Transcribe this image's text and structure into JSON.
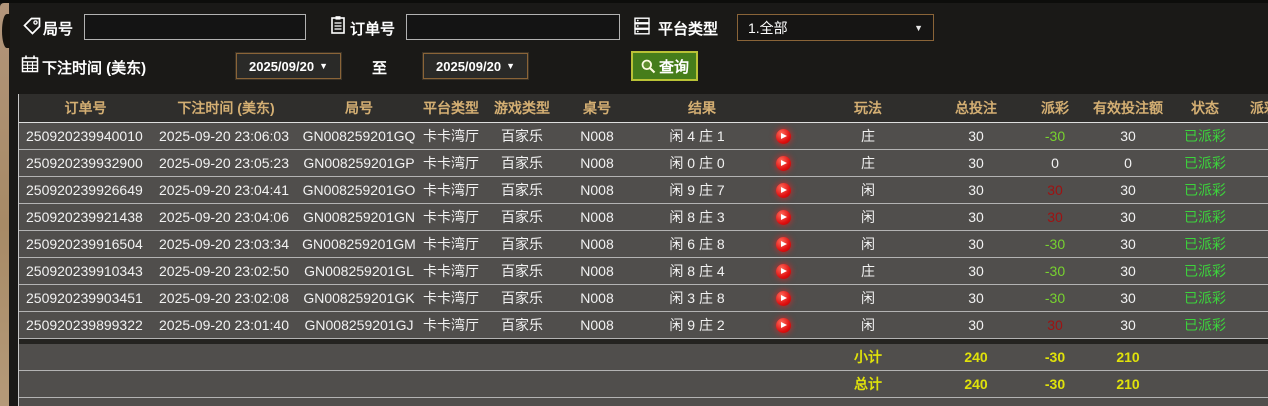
{
  "filters": {
    "round_label": "局号",
    "round_value": "",
    "order_label": "订单号",
    "order_value": "",
    "platform_label": "平台类型",
    "platform_selected": "1.全部",
    "bet_time_label": "下注时间 (美东)",
    "date_from": "2025/09/20",
    "date_to": "2025/09/20",
    "to_label": "至",
    "query_label": "查询",
    "dropdown_arrow": "▼"
  },
  "colors": {
    "header_text": "#d4af73",
    "summary_yellow": "#e0e20a",
    "status_green": "#3cd43c",
    "payout_loss_green": "#77d22f",
    "payout_win_red": "#9e1212",
    "accent_border_brown": "#8a6438",
    "query_button_green": "#467d1b",
    "row_bg": "#504e4c"
  },
  "table": {
    "columns": [
      "订单号",
      "下注时间 (美东)",
      "局号",
      "平台类型",
      "游戏类型",
      "桌号",
      "结果",
      "玩法",
      "总投注",
      "派彩",
      "有效投注额",
      "状态",
      "派彩时间"
    ],
    "rows": [
      {
        "order_no": "250920239940010",
        "bet_time": "2025-09-20 23:06:03",
        "round_no": "GN008259201GQ",
        "platform": "卡卡湾厅",
        "game_type": "百家乐",
        "table_no": "N008",
        "result": "闲 4 庄 1",
        "play": "庄",
        "total_bet": "30",
        "payout": "-30",
        "payout_color": "green",
        "valid_bet": "30",
        "status": "已派彩"
      },
      {
        "order_no": "250920239932900",
        "bet_time": "2025-09-20 23:05:23",
        "round_no": "GN008259201GP",
        "platform": "卡卡湾厅",
        "game_type": "百家乐",
        "table_no": "N008",
        "result": "闲 0 庄 0",
        "play": "庄",
        "total_bet": "30",
        "payout": "0",
        "payout_color": "white",
        "valid_bet": "0",
        "status": "已派彩"
      },
      {
        "order_no": "250920239926649",
        "bet_time": "2025-09-20 23:04:41",
        "round_no": "GN008259201GO",
        "platform": "卡卡湾厅",
        "game_type": "百家乐",
        "table_no": "N008",
        "result": "闲 9 庄 7",
        "play": "闲",
        "total_bet": "30",
        "payout": "30",
        "payout_color": "red",
        "valid_bet": "30",
        "status": "已派彩"
      },
      {
        "order_no": "250920239921438",
        "bet_time": "2025-09-20 23:04:06",
        "round_no": "GN008259201GN",
        "platform": "卡卡湾厅",
        "game_type": "百家乐",
        "table_no": "N008",
        "result": "闲 8 庄 3",
        "play": "闲",
        "total_bet": "30",
        "payout": "30",
        "payout_color": "red",
        "valid_bet": "30",
        "status": "已派彩"
      },
      {
        "order_no": "250920239916504",
        "bet_time": "2025-09-20 23:03:34",
        "round_no": "GN008259201GM",
        "platform": "卡卡湾厅",
        "game_type": "百家乐",
        "table_no": "N008",
        "result": "闲 6 庄 8",
        "play": "闲",
        "total_bet": "30",
        "payout": "-30",
        "payout_color": "green",
        "valid_bet": "30",
        "status": "已派彩"
      },
      {
        "order_no": "250920239910343",
        "bet_time": "2025-09-20 23:02:50",
        "round_no": "GN008259201GL",
        "platform": "卡卡湾厅",
        "game_type": "百家乐",
        "table_no": "N008",
        "result": "闲 8 庄 4",
        "play": "庄",
        "total_bet": "30",
        "payout": "-30",
        "payout_color": "green",
        "valid_bet": "30",
        "status": "已派彩"
      },
      {
        "order_no": "250920239903451",
        "bet_time": "2025-09-20 23:02:08",
        "round_no": "GN008259201GK",
        "platform": "卡卡湾厅",
        "game_type": "百家乐",
        "table_no": "N008",
        "result": "闲 3 庄 8",
        "play": "闲",
        "total_bet": "30",
        "payout": "-30",
        "payout_color": "green",
        "valid_bet": "30",
        "status": "已派彩"
      },
      {
        "order_no": "250920239899322",
        "bet_time": "2025-09-20 23:01:40",
        "round_no": "GN008259201GJ",
        "platform": "卡卡湾厅",
        "game_type": "百家乐",
        "table_no": "N008",
        "result": "闲 9 庄 2",
        "play": "闲",
        "total_bet": "30",
        "payout": "30",
        "payout_color": "red",
        "valid_bet": "30",
        "status": "已派彩"
      }
    ],
    "subtotal": {
      "label": "小计",
      "total_bet": "240",
      "payout": "-30",
      "valid_bet": "210"
    },
    "total": {
      "label": "总计",
      "total_bet": "240",
      "payout": "-30",
      "valid_bet": "210"
    }
  }
}
